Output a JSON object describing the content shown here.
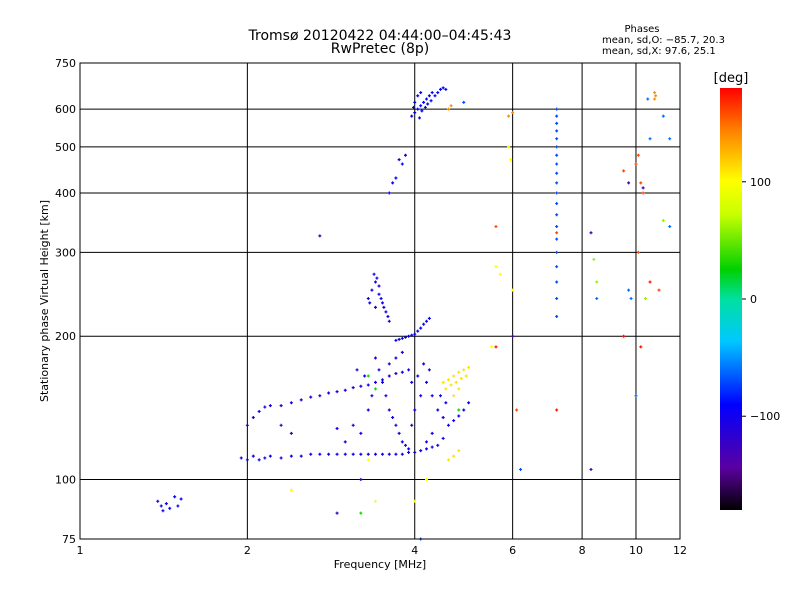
{
  "chart_data": {
    "type": "scatter",
    "title": "Tromsø 20120422 04:44:00–04:45:43",
    "subtitle": "RwPretec (8p)",
    "xlabel": "Frequency [MHz]",
    "ylabel": "Stationary phase Virtual Height [km]",
    "x_scale": "log",
    "y_scale": "log",
    "xlim": [
      1,
      12
    ],
    "ylim": [
      75,
      750
    ],
    "x_ticks": [
      1,
      2,
      4,
      6,
      8,
      10,
      12
    ],
    "y_ticks": [
      75,
      100,
      200,
      300,
      400,
      500,
      600,
      750
    ],
    "x_tick_labels": [
      "1",
      "2",
      "4",
      "6",
      "8",
      "10",
      "12"
    ],
    "y_tick_labels": [
      "75",
      "100",
      "200",
      "300",
      "400",
      "500",
      "600",
      "750"
    ],
    "grid": true,
    "phases_box": {
      "title": "Phases",
      "line1": "mean, sd,O: −85.7, 20.3",
      "line2": "mean, sd,X:  97.6, 25.1"
    },
    "colorbar": {
      "label": "[deg]",
      "range": [
        -180,
        180
      ],
      "ticks": [
        100,
        0,
        -100
      ],
      "tick_labels": [
        "100",
        "0",
        "−100"
      ]
    },
    "point_groups": [
      {
        "phase": -95,
        "points": [
          [
            1.38,
            90
          ],
          [
            1.4,
            88
          ],
          [
            1.43,
            89
          ],
          [
            1.45,
            87
          ],
          [
            1.48,
            92
          ],
          [
            1.5,
            88
          ],
          [
            1.52,
            91
          ],
          [
            1.41,
            86
          ]
        ]
      },
      {
        "phase": -100,
        "points": [
          [
            1.95,
            111
          ],
          [
            2.0,
            110
          ],
          [
            2.05,
            112
          ],
          [
            2.1,
            110
          ],
          [
            2.15,
            111
          ],
          [
            2.2,
            112
          ],
          [
            2.3,
            111
          ],
          [
            2.4,
            112
          ],
          [
            2.5,
            112
          ],
          [
            2.6,
            113
          ],
          [
            2.7,
            113
          ],
          [
            2.8,
            113
          ],
          [
            2.9,
            113
          ],
          [
            3.0,
            113
          ],
          [
            3.1,
            113
          ],
          [
            3.2,
            113
          ],
          [
            3.3,
            113
          ],
          [
            3.4,
            113
          ],
          [
            3.5,
            113
          ],
          [
            3.6,
            113
          ],
          [
            3.7,
            113
          ],
          [
            3.8,
            113
          ],
          [
            3.9,
            114
          ],
          [
            4.0,
            114
          ],
          [
            4.1,
            115
          ],
          [
            4.2,
            116
          ],
          [
            4.3,
            117
          ]
        ]
      },
      {
        "phase": -105,
        "points": [
          [
            2.0,
            130
          ],
          [
            2.05,
            135
          ],
          [
            2.1,
            139
          ],
          [
            2.15,
            142
          ],
          [
            2.2,
            143
          ],
          [
            2.3,
            143
          ],
          [
            2.4,
            145
          ],
          [
            2.5,
            147
          ],
          [
            2.6,
            149
          ],
          [
            2.7,
            150
          ],
          [
            2.8,
            152
          ],
          [
            2.9,
            153
          ],
          [
            3.0,
            154
          ],
          [
            3.1,
            156
          ],
          [
            3.2,
            157
          ],
          [
            3.3,
            158
          ],
          [
            3.4,
            160
          ],
          [
            3.5,
            162
          ],
          [
            3.6,
            165
          ],
          [
            3.7,
            167
          ],
          [
            3.8,
            168
          ],
          [
            3.9,
            170
          ]
        ]
      },
      {
        "phase": -100,
        "points": [
          [
            3.3,
            240
          ],
          [
            3.35,
            250
          ],
          [
            3.4,
            260
          ],
          [
            3.45,
            245
          ],
          [
            3.5,
            235
          ],
          [
            3.52,
            230
          ],
          [
            3.55,
            225
          ],
          [
            3.58,
            220
          ],
          [
            3.6,
            215
          ],
          [
            3.4,
            230
          ],
          [
            3.45,
            255
          ],
          [
            3.48,
            240
          ],
          [
            3.38,
            270
          ],
          [
            3.42,
            265
          ],
          [
            3.32,
            235
          ]
        ]
      },
      {
        "phase": -95,
        "points": [
          [
            3.7,
            196
          ],
          [
            3.8,
            198
          ],
          [
            3.9,
            200
          ],
          [
            4.0,
            202
          ],
          [
            4.05,
            205
          ],
          [
            4.1,
            208
          ],
          [
            4.15,
            212
          ],
          [
            4.2,
            215
          ],
          [
            4.25,
            218
          ],
          [
            3.75,
            197
          ],
          [
            3.85,
            199
          ],
          [
            3.95,
            201
          ]
        ]
      },
      {
        "phase": -100,
        "points": [
          [
            3.4,
            180
          ],
          [
            3.45,
            170
          ],
          [
            3.5,
            160
          ],
          [
            3.55,
            150
          ],
          [
            3.6,
            140
          ],
          [
            3.65,
            135
          ],
          [
            3.7,
            130
          ],
          [
            3.75,
            125
          ],
          [
            3.8,
            120
          ],
          [
            3.85,
            118
          ],
          [
            3.9,
            116
          ],
          [
            3.95,
            130
          ],
          [
            4.0,
            140
          ],
          [
            4.1,
            150
          ],
          [
            4.2,
            160
          ],
          [
            4.3,
            150
          ],
          [
            4.4,
            140
          ],
          [
            4.5,
            135
          ],
          [
            4.6,
            130
          ],
          [
            4.7,
            133
          ],
          [
            4.8,
            136
          ],
          [
            4.9,
            140
          ],
          [
            5.0,
            145
          ],
          [
            4.2,
            120
          ],
          [
            4.3,
            125
          ],
          [
            4.4,
            118
          ],
          [
            4.5,
            122
          ],
          [
            3.2,
            125
          ],
          [
            3.1,
            130
          ],
          [
            3.0,
            120
          ],
          [
            2.9,
            128
          ],
          [
            3.3,
            140
          ],
          [
            3.35,
            150
          ],
          [
            3.25,
            165
          ],
          [
            3.15,
            170
          ],
          [
            4.15,
            175
          ],
          [
            4.25,
            170
          ],
          [
            3.6,
            175
          ],
          [
            3.7,
            180
          ],
          [
            3.8,
            185
          ],
          [
            3.95,
            160
          ],
          [
            4.05,
            165
          ],
          [
            4.45,
            150
          ],
          [
            4.55,
            145
          ]
        ]
      },
      {
        "phase": -90,
        "points": [
          [
            3.95,
            580
          ],
          [
            4.0,
            590
          ],
          [
            4.05,
            600
          ],
          [
            4.1,
            610
          ],
          [
            4.15,
            620
          ],
          [
            4.2,
            630
          ],
          [
            4.25,
            640
          ],
          [
            4.3,
            650
          ],
          [
            4.0,
            620
          ],
          [
            4.05,
            640
          ],
          [
            4.1,
            650
          ],
          [
            3.98,
            605
          ],
          [
            4.08,
            575
          ],
          [
            4.12,
            595
          ],
          [
            4.18,
            605
          ],
          [
            4.22,
            615
          ],
          [
            4.28,
            625
          ],
          [
            4.35,
            640
          ],
          [
            4.4,
            650
          ],
          [
            4.45,
            660
          ],
          [
            4.5,
            665
          ],
          [
            4.55,
            660
          ]
        ]
      },
      {
        "phase": -95,
        "points": [
          [
            3.6,
            400
          ],
          [
            3.7,
            430
          ],
          [
            3.8,
            460
          ],
          [
            3.85,
            480
          ],
          [
            3.75,
            470
          ],
          [
            3.65,
            420
          ]
        ]
      },
      {
        "phase": -115,
        "points": [
          [
            2.7,
            325
          ],
          [
            2.3,
            130
          ],
          [
            2.4,
            125
          ],
          [
            3.2,
            100
          ],
          [
            2.9,
            85
          ]
        ]
      },
      {
        "phase": 110,
        "points": [
          [
            4.5,
            160
          ],
          [
            4.6,
            162
          ],
          [
            4.7,
            165
          ],
          [
            4.8,
            168
          ],
          [
            4.9,
            170
          ],
          [
            5.0,
            172
          ],
          [
            4.55,
            155
          ],
          [
            4.65,
            158
          ],
          [
            4.75,
            160
          ],
          [
            4.85,
            163
          ],
          [
            4.95,
            165
          ],
          [
            4.7,
            150
          ],
          [
            4.8,
            155
          ],
          [
            4.6,
            110
          ],
          [
            4.7,
            112
          ],
          [
            4.8,
            115
          ]
        ]
      },
      {
        "phase": 140,
        "points": [
          [
            4.6,
            600
          ],
          [
            4.65,
            610
          ],
          [
            5.9,
            580
          ],
          [
            6.0,
            590
          ],
          [
            10.8,
            650
          ],
          [
            10.85,
            640
          ],
          [
            10.8,
            630
          ]
        ]
      },
      {
        "phase": 100,
        "points": [
          [
            5.9,
            500
          ],
          [
            5.95,
            470
          ],
          [
            5.6,
            280
          ],
          [
            5.7,
            270
          ],
          [
            6.0,
            250
          ],
          [
            5.5,
            190
          ],
          [
            3.3,
            110
          ],
          [
            3.4,
            90
          ],
          [
            2.4,
            95
          ],
          [
            4.0,
            90
          ],
          [
            4.2,
            100
          ]
        ]
      },
      {
        "phase": 30,
        "points": [
          [
            3.3,
            165
          ],
          [
            3.4,
            155
          ],
          [
            4.8,
            140
          ],
          [
            3.2,
            85
          ]
        ]
      },
      {
        "phase": -70,
        "points": [
          [
            7.2,
            600
          ],
          [
            7.2,
            580
          ],
          [
            7.2,
            560
          ],
          [
            7.2,
            540
          ],
          [
            7.2,
            520
          ],
          [
            7.2,
            500
          ],
          [
            7.2,
            480
          ],
          [
            7.2,
            460
          ],
          [
            7.2,
            440
          ],
          [
            7.2,
            420
          ],
          [
            7.2,
            400
          ],
          [
            7.2,
            380
          ],
          [
            7.2,
            360
          ],
          [
            7.2,
            340
          ],
          [
            7.2,
            320
          ],
          [
            7.2,
            300
          ],
          [
            7.2,
            280
          ],
          [
            7.2,
            260
          ],
          [
            7.2,
            240
          ],
          [
            7.2,
            220
          ],
          [
            4.9,
            620
          ],
          [
            6.2,
            105
          ],
          [
            4.1,
            75
          ]
        ]
      },
      {
        "phase": 160,
        "points": [
          [
            7.2,
            330
          ],
          [
            5.6,
            340
          ],
          [
            6.1,
            140
          ],
          [
            10.3,
            400
          ],
          [
            10.0,
            460
          ],
          [
            10.1,
            480
          ],
          [
            11.0,
            250
          ],
          [
            10.1,
            300
          ],
          [
            9.5,
            445
          ],
          [
            10.2,
            420
          ]
        ]
      },
      {
        "phase": 175,
        "points": [
          [
            5.6,
            190
          ],
          [
            9.5,
            200
          ],
          [
            10.2,
            190
          ],
          [
            7.2,
            140
          ],
          [
            10.6,
            260
          ]
        ]
      },
      {
        "phase": -130,
        "points": [
          [
            9.7,
            420
          ],
          [
            10.3,
            410
          ],
          [
            8.3,
            330
          ],
          [
            8.3,
            105
          ],
          [
            6.0,
            200
          ]
        ]
      },
      {
        "phase": -60,
        "points": [
          [
            8.5,
            240
          ],
          [
            9.8,
            240
          ],
          [
            9.7,
            250
          ],
          [
            10.0,
            150
          ],
          [
            11.2,
            580
          ],
          [
            11.5,
            520
          ],
          [
            11.5,
            340
          ],
          [
            10.5,
            630
          ],
          [
            10.6,
            520
          ]
        ]
      },
      {
        "phase": 60,
        "points": [
          [
            8.4,
            290
          ],
          [
            8.5,
            260
          ],
          [
            10.4,
            240
          ],
          [
            11.2,
            350
          ]
        ]
      }
    ]
  }
}
